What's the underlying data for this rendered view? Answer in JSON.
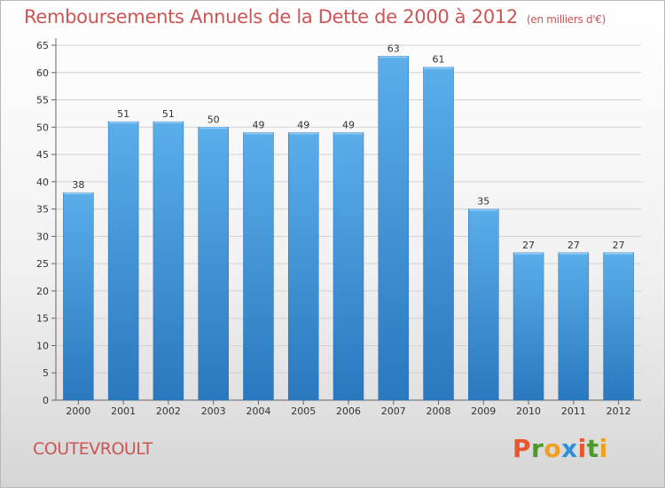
{
  "chart_data": {
    "type": "bar",
    "title": "Remboursements Annuels de la Dette de 2000 à 2012",
    "subtitle": "(en milliers d'€)",
    "categories": [
      "2000",
      "2001",
      "2002",
      "2003",
      "2004",
      "2005",
      "2006",
      "2007",
      "2008",
      "2009",
      "2010",
      "2011",
      "2012"
    ],
    "values": [
      38,
      51,
      51,
      50,
      49,
      49,
      49,
      63,
      61,
      35,
      27,
      27,
      27
    ],
    "ylim": [
      0,
      65
    ],
    "yticks": [
      0,
      5,
      10,
      15,
      20,
      25,
      30,
      35,
      40,
      45,
      50,
      55,
      60,
      65
    ],
    "grid": true,
    "bar_color": "#3e8fd5"
  },
  "footer": {
    "place": "COUTEVROULT",
    "logo": "Proxiti",
    "logo_colors": [
      "#e8562e",
      "#4c9a2a",
      "#f0a020",
      "#2f8fd8",
      "#e8562e",
      "#4c9a2a",
      "#f0a020"
    ]
  }
}
